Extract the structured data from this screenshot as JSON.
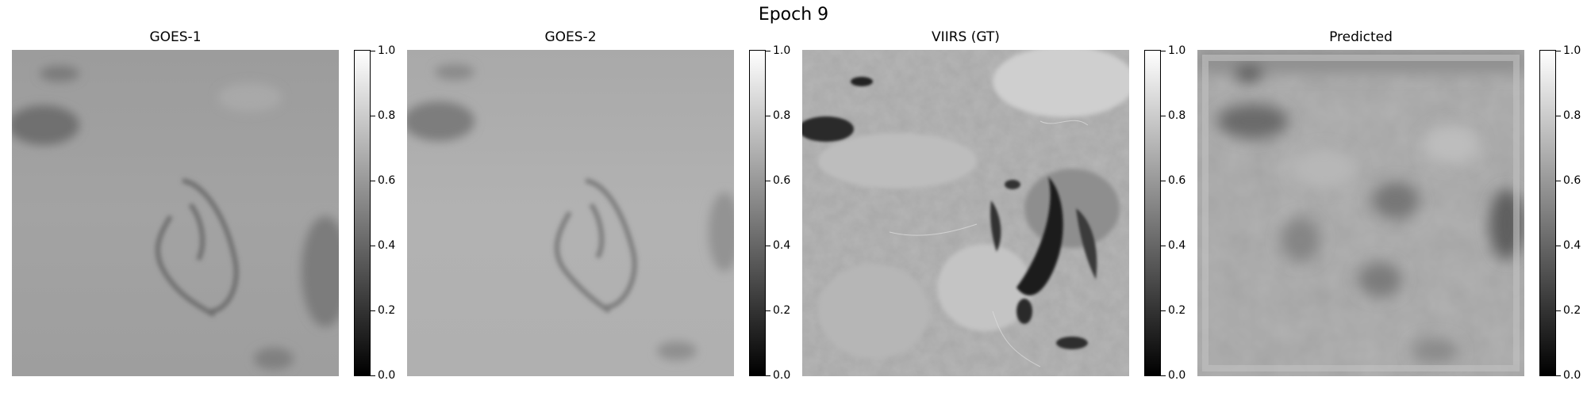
{
  "figure": {
    "title": "Epoch 9"
  },
  "panels": [
    {
      "title": "GOES-1",
      "image": "low-resolution grayscale satellite image, mostly light gray with faint darker cloud swirl",
      "colorbar": {
        "ticks": [
          "0.0",
          "0.2",
          "0.4",
          "0.6",
          "0.8",
          "1.0"
        ]
      }
    },
    {
      "title": "GOES-2",
      "image": "low-resolution grayscale satellite image, slightly lighter gray with faint darker cloud swirl",
      "colorbar": {
        "ticks": [
          "0.0",
          "0.2",
          "0.4",
          "0.6",
          "0.8",
          "1.0"
        ]
      }
    },
    {
      "title": "VIIRS (GT)",
      "image": "high-resolution grayscale satellite image with dark cloud streaks and textured terrain",
      "colorbar": {
        "ticks": [
          "0.0",
          "0.2",
          "0.4",
          "0.6",
          "0.8",
          "1.0"
        ]
      }
    },
    {
      "title": "Predicted",
      "image": "blurry grayscale predicted image with blotchy patches and a light frame border",
      "colorbar": {
        "ticks": [
          "0.0",
          "0.2",
          "0.4",
          "0.6",
          "0.8",
          "1.0"
        ]
      }
    }
  ],
  "colors": {
    "colormap_low": "#000000",
    "colormap_high": "#ffffff"
  }
}
